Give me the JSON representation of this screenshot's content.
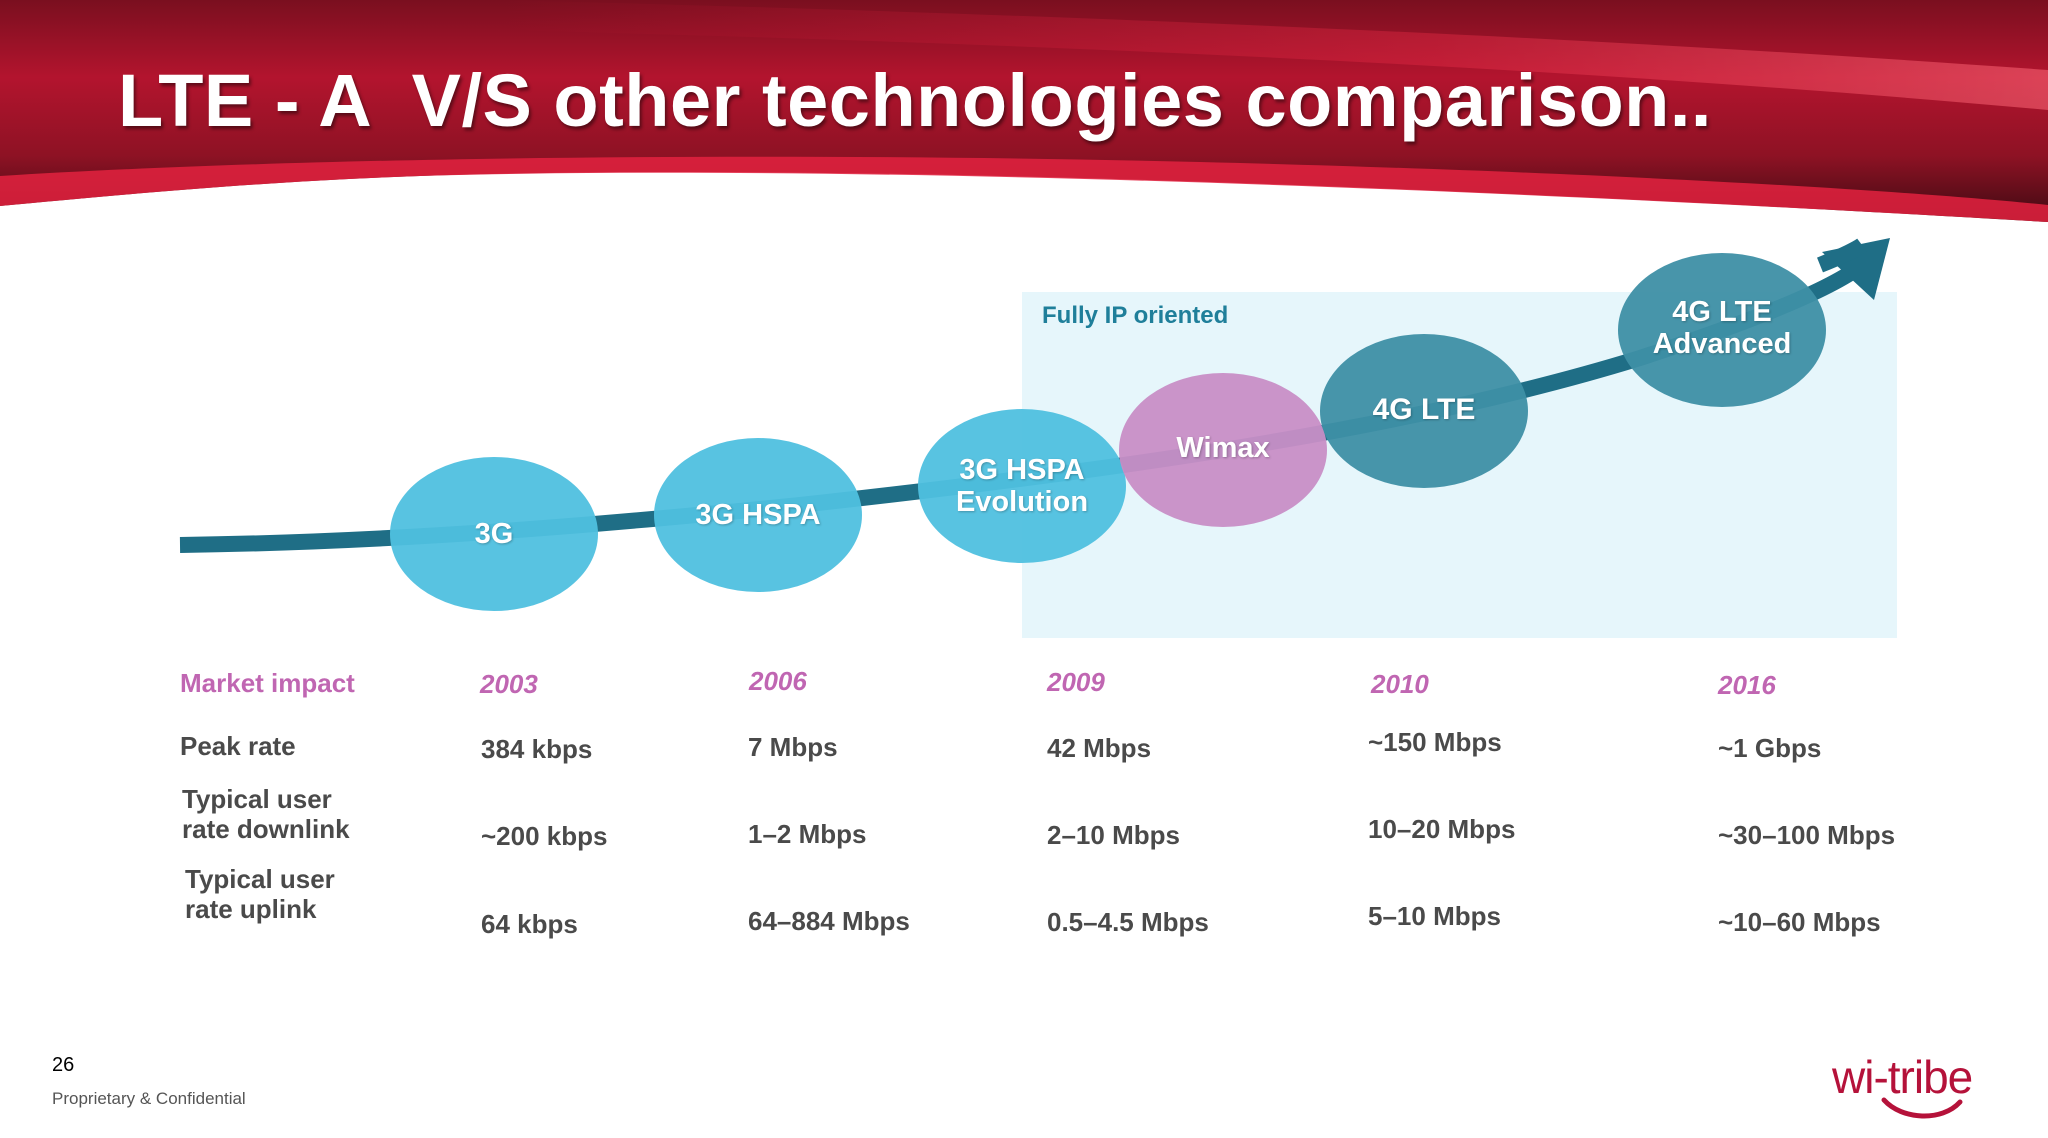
{
  "slide": {
    "title": "LTE - A  V/S other technologies comparison..",
    "page_number": "26",
    "footer": "Proprietary & Confidential",
    "logo_text": "wi-tribe"
  },
  "diagram": {
    "region_label": "Fully IP oriented",
    "technologies": [
      {
        "label": "3G",
        "color": "#4fc0df"
      },
      {
        "label": "3G HSPA",
        "color": "#4fc0df"
      },
      {
        "label": "3G HSPA\nEvolution",
        "color": "#4fc0df"
      },
      {
        "label": "Wimax",
        "color": "#c88ec6"
      },
      {
        "label": "4G LTE",
        "color": "#3e8fa5"
      },
      {
        "label": "4G LTE\nAdvanced",
        "color": "#3e8fa5"
      }
    ],
    "arrow_color": "#1f6e86",
    "region_color": "#e6f6fb"
  },
  "table": {
    "row_labels": {
      "market": "Market impact",
      "peak": "Peak rate",
      "downlink": "Typical user\nrate downlink",
      "uplink": "Typical user\nrate uplink"
    },
    "columns": [
      {
        "year": "2003",
        "peak": "384 kbps",
        "downlink": "~200 kbps",
        "uplink": "64 kbps"
      },
      {
        "year": "2006",
        "peak": "7 Mbps",
        "downlink": "1–2 Mbps",
        "uplink": "64–884 Mbps"
      },
      {
        "year": "2009",
        "peak": "42 Mbps",
        "downlink": "2–10 Mbps",
        "uplink": "0.5–4.5 Mbps"
      },
      {
        "year": "2010",
        "peak": "~150 Mbps",
        "downlink": "10–20 Mbps",
        "uplink": "5–10 Mbps"
      },
      {
        "year": "2016",
        "peak": "~1 Gbps",
        "downlink": "~30–100 Mbps",
        "uplink": "~10–60 Mbps"
      }
    ]
  },
  "colors": {
    "header_red": "#c8102e",
    "header_dark": "#6a0f1c",
    "accent_pink": "#c066b2",
    "text_gray": "#4a4a4a"
  }
}
